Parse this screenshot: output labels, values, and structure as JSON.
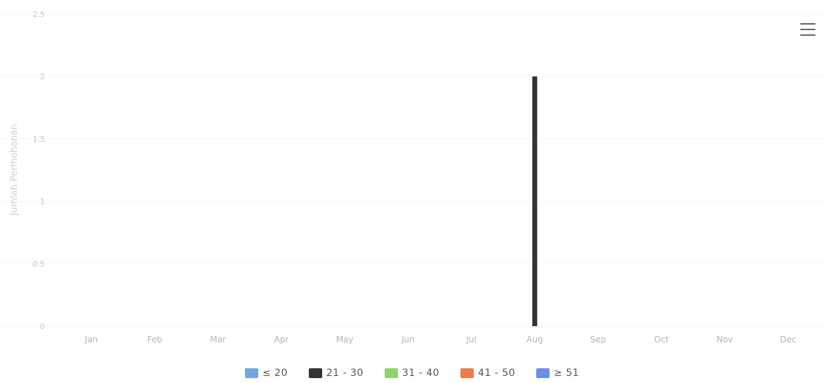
{
  "chart_data": {
    "type": "bar",
    "title": "",
    "ylabel": "Jumlah Permohonan",
    "xlabel": "",
    "categories": [
      "Jan",
      "Feb",
      "Mar",
      "Apr",
      "May",
      "Jun",
      "Jul",
      "Aug",
      "Sep",
      "Oct",
      "Nov",
      "Dec"
    ],
    "ylim": [
      0,
      2.5
    ],
    "yticks": [
      "0",
      "0.5",
      "1",
      "1.5",
      "2",
      "2.5"
    ],
    "grid": true,
    "legend_placement": "bottom-center",
    "series": [
      {
        "name": "≤ 20",
        "color": "#6fa8e0",
        "values": [
          0,
          0,
          0,
          0,
          0,
          0,
          0,
          0,
          0,
          0,
          0,
          0
        ]
      },
      {
        "name": "21 - 30",
        "color": "#333333",
        "values": [
          0,
          0,
          0,
          0,
          0,
          0,
          0,
          2,
          0,
          0,
          0,
          0
        ]
      },
      {
        "name": "31 - 40",
        "color": "#8fd46a",
        "values": [
          0,
          0,
          0,
          0,
          0,
          0,
          0,
          0,
          0,
          0,
          0,
          0
        ]
      },
      {
        "name": "41 - 50",
        "color": "#ee7a4a",
        "values": [
          0,
          0,
          0,
          0,
          0,
          0,
          0,
          0,
          0,
          0,
          0,
          0
        ]
      },
      {
        "name": "≥ 51",
        "color": "#6b8fe6",
        "values": [
          0,
          0,
          0,
          0,
          0,
          0,
          0,
          0,
          0,
          0,
          0,
          0
        ]
      }
    ]
  },
  "menu": {
    "icon": "hamburger-menu-icon"
  }
}
